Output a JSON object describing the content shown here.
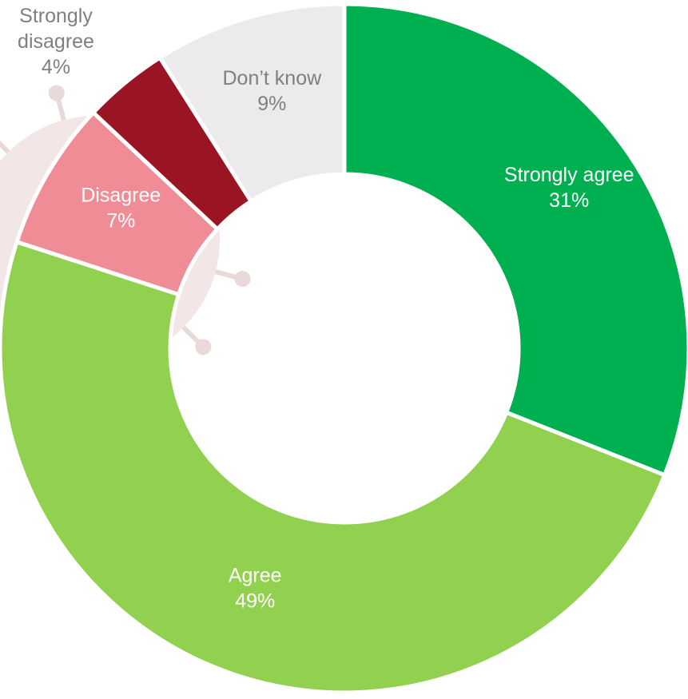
{
  "chart_data": {
    "type": "pie",
    "variant": "donut",
    "legend": "none",
    "slices": [
      {
        "label": "Strongly agree",
        "value": 31,
        "value_label": "31%",
        "color": "#00b050",
        "label_color": "#ffffff"
      },
      {
        "label": "Agree",
        "value": 49,
        "value_label": "49%",
        "color": "#92d050",
        "label_color": "#ffffff"
      },
      {
        "label": "Disagree",
        "value": 7,
        "value_label": "7%",
        "color": "#f08c96",
        "label_color": "#ffffff"
      },
      {
        "label": "Strongly disagree",
        "value": 4,
        "value_label": "4%",
        "color": "#9b1424",
        "label_color": "#7f7f7f"
      },
      {
        "label": "Don’t know",
        "value": 9,
        "value_label": "9%",
        "color": "#eceaec",
        "label_color": "#7f7f7f"
      }
    ],
    "background_decoration": "virus-icon"
  }
}
